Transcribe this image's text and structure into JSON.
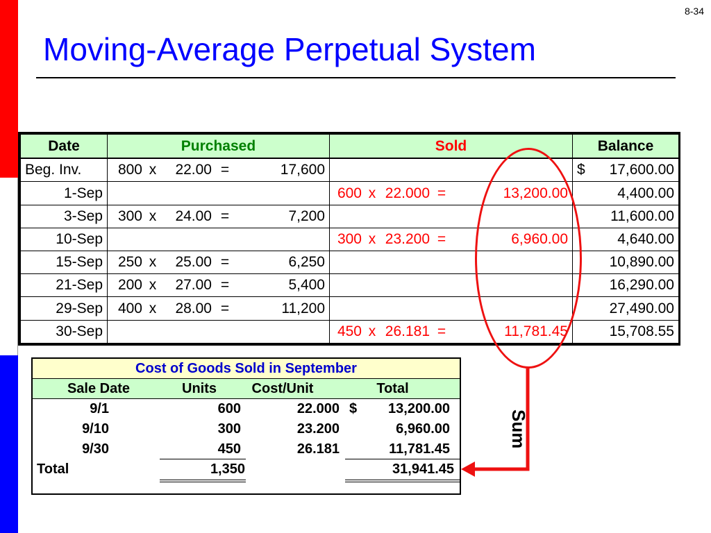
{
  "page_number": "8-34",
  "title": "Moving-Average Perpetual System",
  "colors": {
    "title": "#0000ff",
    "purchased": "#008000",
    "sold": "#ff0000",
    "header_bg": "#ccffcc",
    "cogs_title_bg": "#ffffcc",
    "annotation": "#ee1111"
  },
  "ledger": {
    "headers": {
      "date": "Date",
      "purchased": "Purchased",
      "sold": "Sold",
      "balance": "Balance"
    },
    "rows": [
      {
        "date": "Beg. Inv.",
        "p_units": "800",
        "p_x": "x",
        "p_cost": "22.00",
        "p_eq": "=",
        "p_total": "17,600",
        "s_units": "",
        "s_x": "",
        "s_cost": "",
        "s_eq": "",
        "s_total": "",
        "bal_cur": "$",
        "balance": "17,600.00"
      },
      {
        "date": "1-Sep",
        "p_units": "",
        "p_x": "",
        "p_cost": "",
        "p_eq": "",
        "p_total": "",
        "s_units": "600",
        "s_x": "x",
        "s_cost": "22.000",
        "s_eq": "=",
        "s_total": "13,200.00",
        "bal_cur": "",
        "balance": "4,400.00"
      },
      {
        "date": "3-Sep",
        "p_units": "300",
        "p_x": "x",
        "p_cost": "24.00",
        "p_eq": "=",
        "p_total": "7,200",
        "s_units": "",
        "s_x": "",
        "s_cost": "",
        "s_eq": "",
        "s_total": "",
        "bal_cur": "",
        "balance": "11,600.00"
      },
      {
        "date": "10-Sep",
        "p_units": "",
        "p_x": "",
        "p_cost": "",
        "p_eq": "",
        "p_total": "",
        "s_units": "300",
        "s_x": "x",
        "s_cost": "23.200",
        "s_eq": "=",
        "s_total": "6,960.00",
        "bal_cur": "",
        "balance": "4,640.00"
      },
      {
        "date": "15-Sep",
        "p_units": "250",
        "p_x": "x",
        "p_cost": "25.00",
        "p_eq": "=",
        "p_total": "6,250",
        "s_units": "",
        "s_x": "",
        "s_cost": "",
        "s_eq": "",
        "s_total": "",
        "bal_cur": "",
        "balance": "10,890.00"
      },
      {
        "date": "21-Sep",
        "p_units": "200",
        "p_x": "x",
        "p_cost": "27.00",
        "p_eq": "=",
        "p_total": "5,400",
        "s_units": "",
        "s_x": "",
        "s_cost": "",
        "s_eq": "",
        "s_total": "",
        "bal_cur": "",
        "balance": "16,290.00"
      },
      {
        "date": "29-Sep",
        "p_units": "400",
        "p_x": "x",
        "p_cost": "28.00",
        "p_eq": "=",
        "p_total": "11,200",
        "s_units": "",
        "s_x": "",
        "s_cost": "",
        "s_eq": "",
        "s_total": "",
        "bal_cur": "",
        "balance": "27,490.00"
      },
      {
        "date": "30-Sep",
        "p_units": "",
        "p_x": "",
        "p_cost": "",
        "p_eq": "",
        "p_total": "",
        "s_units": "450",
        "s_x": "x",
        "s_cost": "26.181",
        "s_eq": "=",
        "s_total": "11,781.45",
        "bal_cur": "",
        "balance": "15,708.55"
      }
    ]
  },
  "cogs": {
    "title": "Cost of Goods Sold in September",
    "headers": {
      "sale_date": "Sale Date",
      "units": "Units",
      "cost_unit": "Cost/Unit",
      "total": "Total"
    },
    "rows": [
      {
        "sale_date": "9/1",
        "units": "600",
        "cost_unit": "22.000",
        "cur": "$",
        "total": "13,200.00"
      },
      {
        "sale_date": "9/10",
        "units": "300",
        "cost_unit": "23.200",
        "cur": "",
        "total": "6,960.00"
      },
      {
        "sale_date": "9/30",
        "units": "450",
        "cost_unit": "26.181",
        "cur": "",
        "total": "11,781.45"
      }
    ],
    "total_row": {
      "label": "Total",
      "units": "1,350",
      "total": "31,941.45"
    }
  },
  "annotation": {
    "sum_label": "Sum"
  }
}
